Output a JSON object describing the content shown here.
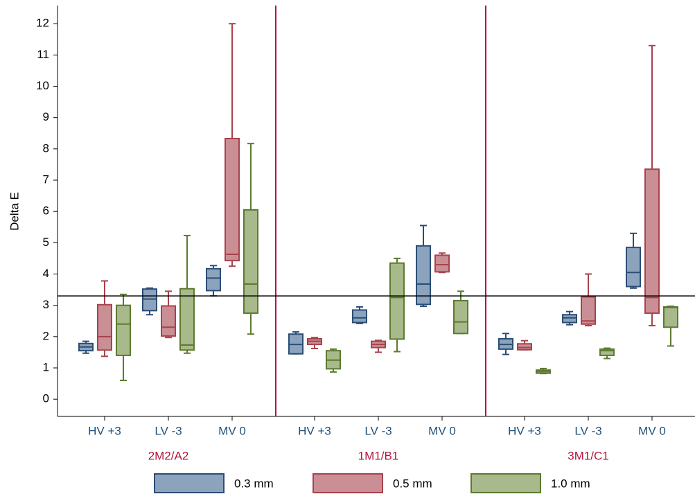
{
  "chart_data": {
    "type": "box",
    "y_label": "Delta E",
    "groups": [
      "2M2/A2",
      "1M1/B1",
      "3M1/C1"
    ],
    "categories": [
      "HV +3",
      "LV -3",
      "MV 0"
    ],
    "ylim": [
      -0.55,
      12.58
    ],
    "yticks": [
      0,
      1,
      2,
      3,
      4,
      5,
      6,
      7,
      8,
      9,
      10,
      11,
      12
    ],
    "reference_line": 3.3,
    "legend_position": "bottom",
    "series": [
      {
        "name": "0.3 mm",
        "color": "#2b4d75",
        "fill": "#8ca3be",
        "boxes": [
          {
            "min": 1.47,
            "q1": 1.55,
            "median": 1.67,
            "q3": 1.78,
            "max": 1.85
          },
          {
            "min": 2.7,
            "q1": 2.83,
            "median": 3.2,
            "q3": 3.52,
            "max": 3.55
          },
          {
            "min": 3.3,
            "q1": 3.47,
            "median": 3.87,
            "q3": 4.17,
            "max": 4.27
          },
          {
            "min": 1.45,
            "q1": 1.45,
            "median": 1.75,
            "q3": 2.08,
            "max": 2.15
          },
          {
            "min": 2.42,
            "q1": 2.45,
            "median": 2.6,
            "q3": 2.85,
            "max": 2.95
          },
          {
            "min": 2.97,
            "q1": 3.03,
            "median": 3.68,
            "q3": 4.9,
            "max": 5.55
          },
          {
            "min": 1.43,
            "q1": 1.6,
            "median": 1.75,
            "q3": 1.93,
            "max": 2.1
          },
          {
            "min": 2.38,
            "q1": 2.45,
            "median": 2.6,
            "q3": 2.7,
            "max": 2.8
          },
          {
            "min": 3.55,
            "q1": 3.6,
            "median": 4.05,
            "q3": 4.85,
            "max": 5.3
          }
        ]
      },
      {
        "name": "0.5 mm",
        "color": "#a8424c",
        "fill": "#c98f95",
        "boxes": [
          {
            "min": 1.37,
            "q1": 1.57,
            "median": 2.0,
            "q3": 3.02,
            "max": 3.78
          },
          {
            "min": 1.97,
            "q1": 2.02,
            "median": 2.3,
            "q3": 2.98,
            "max": 3.45
          },
          {
            "min": 4.25,
            "q1": 4.43,
            "median": 4.63,
            "q3": 8.33,
            "max": 12.0
          },
          {
            "min": 1.62,
            "q1": 1.75,
            "median": 1.85,
            "q3": 1.93,
            "max": 1.97
          },
          {
            "min": 1.5,
            "q1": 1.65,
            "median": 1.75,
            "q3": 1.85,
            "max": 1.88
          },
          {
            "min": 4.05,
            "q1": 4.07,
            "median": 4.3,
            "q3": 4.6,
            "max": 4.67
          },
          {
            "min": 1.58,
            "q1": 1.58,
            "median": 1.65,
            "q3": 1.77,
            "max": 1.87
          },
          {
            "min": 2.35,
            "q1": 2.4,
            "median": 2.5,
            "q3": 3.27,
            "max": 4.0
          },
          {
            "min": 2.35,
            "q1": 2.75,
            "median": 3.25,
            "q3": 7.35,
            "max": 11.3
          }
        ]
      },
      {
        "name": "1.0 mm",
        "color": "#5b7a2e",
        "fill": "#a8b98b",
        "boxes": [
          {
            "min": 0.6,
            "q1": 1.4,
            "median": 2.4,
            "q3": 3.0,
            "max": 3.35
          },
          {
            "min": 1.47,
            "q1": 1.57,
            "median": 1.73,
            "q3": 3.53,
            "max": 5.23
          },
          {
            "min": 2.08,
            "q1": 2.75,
            "median": 3.68,
            "q3": 6.05,
            "max": 8.17
          },
          {
            "min": 0.87,
            "q1": 0.97,
            "median": 1.25,
            "q3": 1.55,
            "max": 1.6
          },
          {
            "min": 1.52,
            "q1": 1.92,
            "median": 3.25,
            "q3": 4.35,
            "max": 4.5
          },
          {
            "min": 2.1,
            "q1": 2.1,
            "median": 2.47,
            "q3": 3.15,
            "max": 3.45
          },
          {
            "min": 0.82,
            "q1": 0.83,
            "median": 0.88,
            "q3": 0.93,
            "max": 0.98
          },
          {
            "min": 1.3,
            "q1": 1.4,
            "median": 1.55,
            "q3": 1.6,
            "max": 1.63
          },
          {
            "min": 1.7,
            "q1": 2.3,
            "median": 2.93,
            "q3": 2.95,
            "max": 2.97
          }
        ]
      }
    ]
  }
}
